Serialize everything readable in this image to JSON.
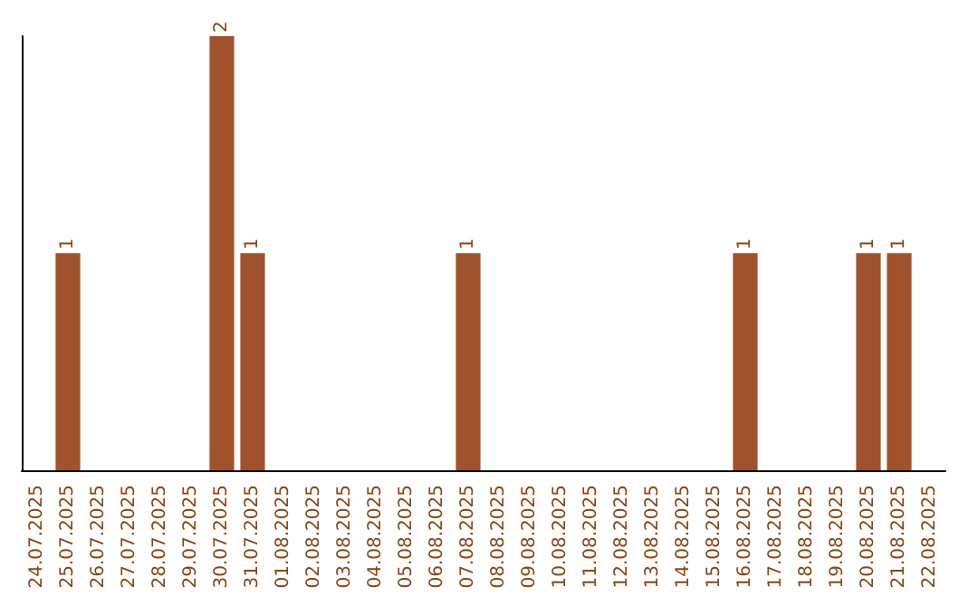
{
  "chart_data": {
    "type": "bar",
    "categories": [
      "24.07.2025",
      "25.07.2025",
      "26.07.2025",
      "27.07.2025",
      "28.07.2025",
      "29.07.2025",
      "30.07.2025",
      "31.07.2025",
      "01.08.2025",
      "02.08.2025",
      "03.08.2025",
      "04.08.2025",
      "05.08.2025",
      "06.08.2025",
      "07.08.2025",
      "08.08.2025",
      "09.08.2025",
      "10.08.2025",
      "11.08.2025",
      "12.08.2025",
      "13.08.2025",
      "14.08.2025",
      "15.08.2025",
      "16.08.2025",
      "17.08.2025",
      "18.08.2025",
      "19.08.2025",
      "20.08.2025",
      "21.08.2025",
      "22.08.2025"
    ],
    "values": [
      0,
      1,
      0,
      0,
      0,
      0,
      2,
      1,
      0,
      0,
      0,
      0,
      0,
      0,
      1,
      0,
      0,
      0,
      0,
      0,
      0,
      0,
      0,
      1,
      0,
      0,
      0,
      1,
      1,
      0
    ],
    "value_labels": [
      null,
      "1",
      null,
      null,
      null,
      null,
      "2",
      "1",
      null,
      null,
      null,
      null,
      null,
      null,
      "1",
      null,
      null,
      null,
      null,
      null,
      null,
      null,
      null,
      "1",
      null,
      null,
      null,
      "1",
      "1",
      null
    ],
    "color": "#a0522d",
    "tick_labels": "x",
    "grid": false
  }
}
